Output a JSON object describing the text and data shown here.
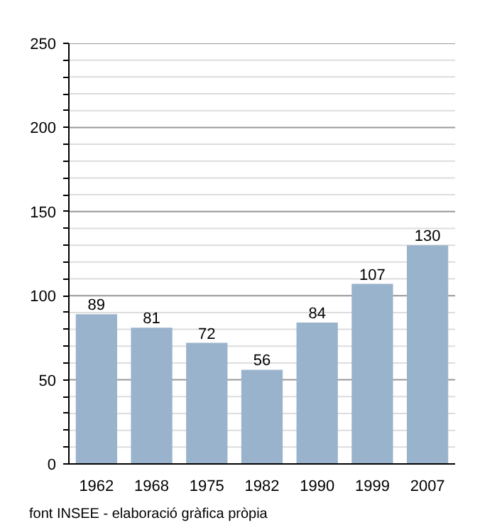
{
  "chart_data": {
    "type": "bar",
    "categories": [
      "1962",
      "1968",
      "1975",
      "1982",
      "1990",
      "1999",
      "2007"
    ],
    "values": [
      89,
      81,
      72,
      56,
      84,
      107,
      130
    ],
    "color": "#9ab3cc",
    "ylim": [
      0,
      250
    ],
    "yticks": [
      0,
      {
        "value": 10,
        "label": null
      },
      {
        "value": 20,
        "label": null
      },
      {
        "value": 30,
        "label": null
      },
      {
        "value": 40,
        "label": null
      },
      50,
      {
        "value": 60,
        "label": null
      },
      {
        "value": 70,
        "label": null
      },
      {
        "value": 80,
        "label": null
      },
      {
        "value": 90,
        "label": null
      },
      100,
      {
        "value": 110,
        "label": null
      },
      {
        "value": 120,
        "label": null
      },
      {
        "value": 130,
        "label": null
      },
      {
        "value": 140,
        "label": null
      },
      150,
      {
        "value": 160,
        "label": null
      },
      {
        "value": 170,
        "label": null
      },
      {
        "value": 180,
        "label": null
      },
      {
        "value": 190,
        "label": null
      },
      200,
      {
        "value": 210,
        "label": null
      },
      {
        "value": 220,
        "label": null
      },
      {
        "value": 230,
        "label": null
      },
      {
        "value": 240,
        "label": null
      },
      250
    ],
    "grid": "y",
    "data_labels": true,
    "annotations": [
      "font INSEE - elaboració gràfica pròpia"
    ]
  }
}
